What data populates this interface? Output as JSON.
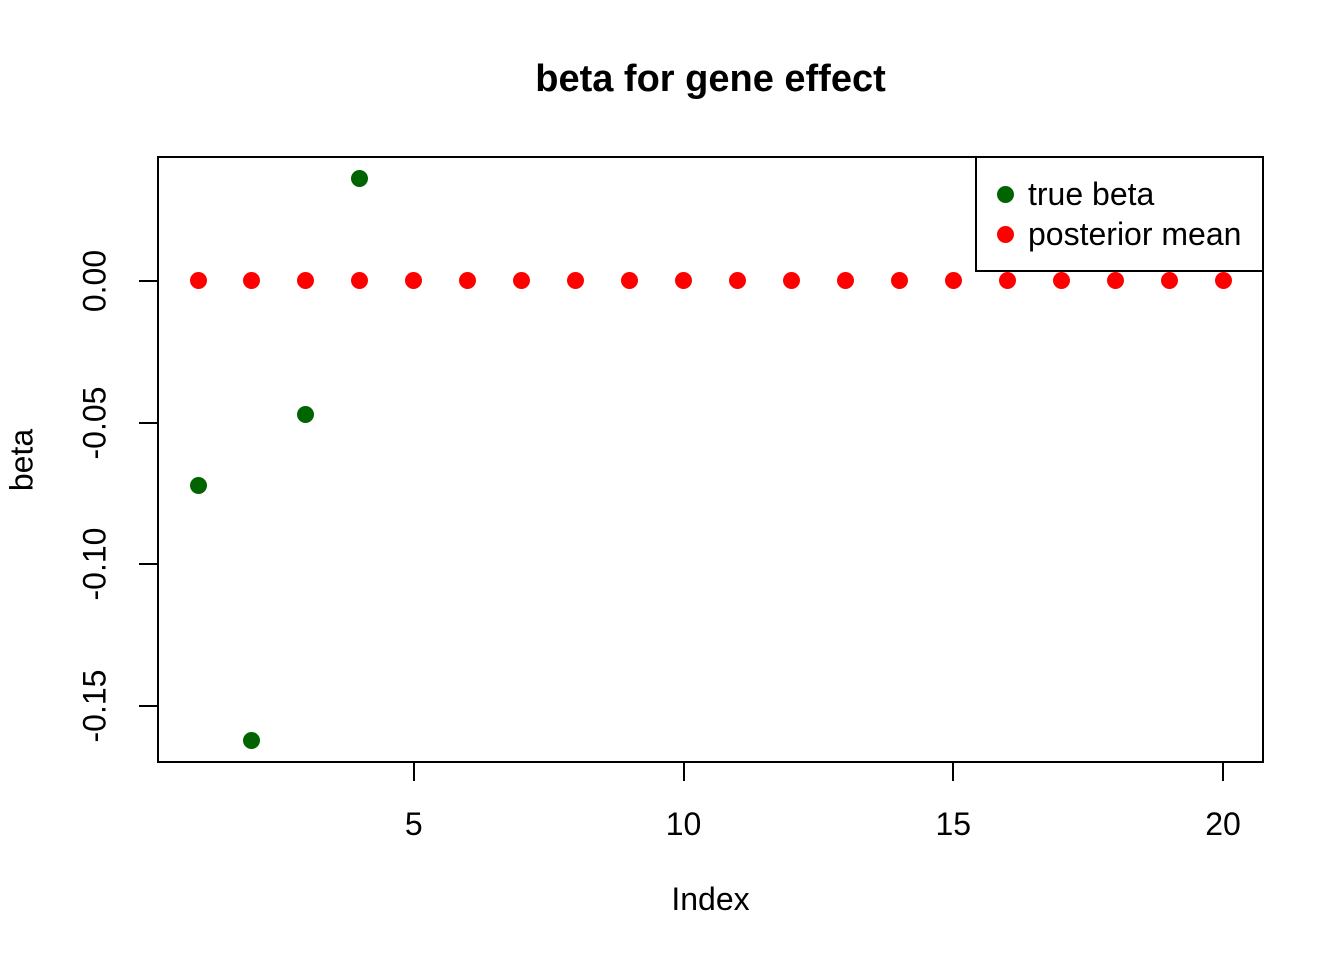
{
  "title": "beta for gene effect",
  "x_axis": {
    "label": "Index",
    "tick_labels": [
      "5",
      "10",
      "15",
      "20"
    ],
    "tick_values": [
      5,
      10,
      15,
      20
    ]
  },
  "y_axis": {
    "label": "beta",
    "tick_labels": [
      "0.00",
      "-0.05",
      "-0.10",
      "-0.15"
    ],
    "tick_values": [
      0,
      -0.05,
      -0.1,
      -0.15
    ]
  },
  "legend": {
    "items": [
      {
        "label": "true beta",
        "color": "#006400"
      },
      {
        "label": "posterior mean",
        "color": "#FF0000"
      }
    ]
  },
  "colors": {
    "true_beta": "#006400",
    "posterior_mean": "#FF0000",
    "axis": "#000000",
    "background": "#FFFFFF"
  },
  "chart_data": {
    "type": "scatter",
    "title": "beta for gene effect",
    "xlabel": "Index",
    "ylabel": "beta",
    "xlim": [
      0.24,
      20.76
    ],
    "ylim": [
      -0.17,
      0.044
    ],
    "x_ticks": [
      5,
      10,
      15,
      20
    ],
    "y_ticks": [
      0,
      -0.05,
      -0.1,
      -0.15
    ],
    "grid": false,
    "legend_position": "top-right",
    "marker": "filled-circle",
    "series": [
      {
        "name": "true beta",
        "color": "#006400",
        "points": [
          {
            "x": 1,
            "y": -0.072
          },
          {
            "x": 2,
            "y": -0.162
          },
          {
            "x": 3,
            "y": -0.047
          },
          {
            "x": 4,
            "y": 0.036
          }
        ]
      },
      {
        "name": "posterior mean",
        "color": "#FF0000",
        "points": [
          {
            "x": 1,
            "y": 0
          },
          {
            "x": 2,
            "y": 0
          },
          {
            "x": 3,
            "y": 0
          },
          {
            "x": 4,
            "y": 0
          },
          {
            "x": 5,
            "y": 0
          },
          {
            "x": 6,
            "y": 0
          },
          {
            "x": 7,
            "y": 0
          },
          {
            "x": 8,
            "y": 0
          },
          {
            "x": 9,
            "y": 0
          },
          {
            "x": 10,
            "y": 0
          },
          {
            "x": 11,
            "y": 0
          },
          {
            "x": 12,
            "y": 0
          },
          {
            "x": 13,
            "y": 0
          },
          {
            "x": 14,
            "y": 0
          },
          {
            "x": 15,
            "y": 0
          },
          {
            "x": 16,
            "y": 0
          },
          {
            "x": 17,
            "y": 0
          },
          {
            "x": 18,
            "y": 0
          },
          {
            "x": 19,
            "y": 0
          },
          {
            "x": 20,
            "y": 0
          }
        ]
      }
    ]
  }
}
